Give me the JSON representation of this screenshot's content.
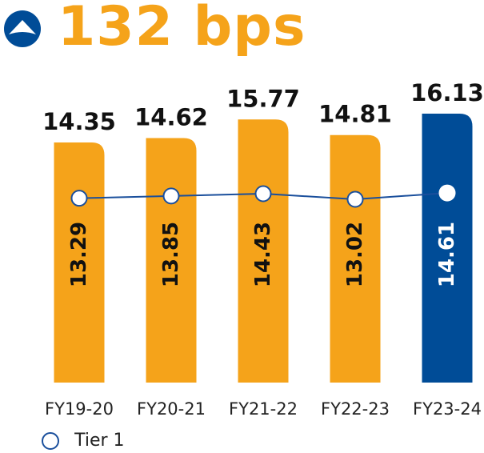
{
  "headline": {
    "value": "132 bps",
    "trend_icon": "up-arrow-circle-icon"
  },
  "colors": {
    "bar_default": "#F5A31A",
    "bar_highlight": "#004C97",
    "line": "#1A4F9C",
    "marker_fill": "#ffffff"
  },
  "chart_data": {
    "type": "bar",
    "categories": [
      "FY19-20",
      "FY20-21",
      "FY21-22",
      "FY22-23",
      "FY23-24"
    ],
    "series": [
      {
        "values": [
          14.35,
          14.62,
          15.77,
          14.81,
          16.13
        ],
        "type": "bar",
        "highlight_index": 4
      },
      {
        "name": "Tier 1",
        "values": [
          13.29,
          13.85,
          14.43,
          13.02,
          14.61
        ],
        "type": "line"
      }
    ],
    "legend": {
      "entries": [
        "Tier 1"
      ],
      "position": "bottom-left"
    },
    "grid": false
  }
}
